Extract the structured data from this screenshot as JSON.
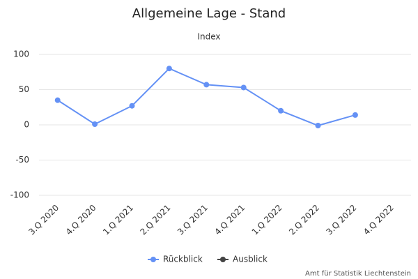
{
  "chart_data": {
    "type": "line",
    "title": "Allgemeine Lage - Stand",
    "subtitle": "Index",
    "categories": [
      "3.Q 2020",
      "4.Q 2020",
      "1.Q 2021",
      "2.Q 2021",
      "3.Q 2021",
      "4.Q 2021",
      "1.Q 2022",
      "2.Q 2022",
      "3.Q 2022",
      "4.Q 2022"
    ],
    "series": [
      {
        "name": "Rückblick",
        "color": "#6491f5",
        "values": [
          35,
          1,
          27,
          80,
          57,
          53,
          20,
          -1,
          14,
          null
        ]
      },
      {
        "name": "Ausblick",
        "color": "#444444",
        "values": [
          null,
          null,
          null,
          null,
          null,
          null,
          null,
          null,
          null,
          null
        ]
      }
    ],
    "ylim": [
      -100,
      100
    ],
    "yticks": [
      -100,
      -50,
      0,
      50,
      100
    ],
    "grid": true,
    "credits": "Amt für Statistik Liechtenstein"
  }
}
